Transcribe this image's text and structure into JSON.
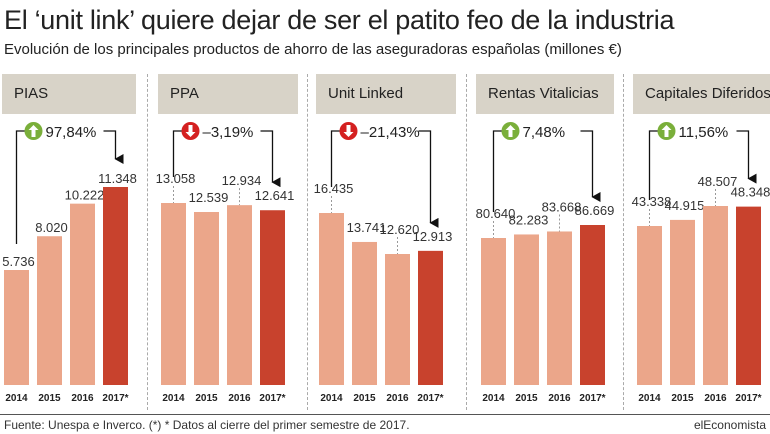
{
  "header": {
    "title": "El ‘unit link’ quiere dejar de ser el patito feo de la industria",
    "subtitle": "Evolución de los principales productos de ahorro de las aseguradoras españolas (millones €)"
  },
  "footer": {
    "source": "Fuente: Unespa e Inverco. (*) * Datos al cierre del primer semestre de 2017.",
    "brand": "elEconomista"
  },
  "colors": {
    "bar_light": "#eba68a",
    "bar_highlight": "#c8422d",
    "up_badge": "#7aaf3a",
    "down_badge": "#d42020",
    "header_bg": "#d8d3c8"
  },
  "chart_data": [
    {
      "type": "bar",
      "title": "PIAS",
      "categories": [
        "2014",
        "2015",
        "2016",
        "2017*"
      ],
      "values": [
        5736,
        8020,
        10222,
        11348
      ],
      "value_labels": [
        "5.736",
        "8.020",
        "10.222",
        "11.348"
      ],
      "change": "97,84%",
      "direction": "up",
      "highlight_index": 3
    },
    {
      "type": "bar",
      "title": "PPA",
      "categories": [
        "2014",
        "2015",
        "2016",
        "2017*"
      ],
      "values": [
        13058,
        12539,
        12934,
        12641
      ],
      "value_labels": [
        "13.058",
        "12.539",
        "12.934",
        "12.641"
      ],
      "change": "–3,19%",
      "direction": "down",
      "highlight_index": 3
    },
    {
      "type": "bar",
      "title": "Unit Linked",
      "categories": [
        "2014",
        "2015",
        "2016",
        "2017*"
      ],
      "values": [
        16435,
        13741,
        12620,
        12913
      ],
      "value_labels": [
        "16.435",
        "13.741",
        "12.620",
        "12.913"
      ],
      "change": "–21,43%",
      "direction": "down",
      "highlight_index": 3
    },
    {
      "type": "bar",
      "title": "Rentas Vitalicias",
      "categories": [
        "2014",
        "2015",
        "2016",
        "2017*"
      ],
      "values": [
        80640,
        82283,
        83668,
        86669
      ],
      "value_labels": [
        "80.640",
        "82.283",
        "83.668",
        "86.669"
      ],
      "change": "7,48%",
      "direction": "up",
      "highlight_index": 3
    },
    {
      "type": "bar",
      "title": "Capitales Diferidos",
      "categories": [
        "2014",
        "2015",
        "2016",
        "2017*"
      ],
      "values": [
        43338,
        44915,
        48507,
        48348
      ],
      "value_labels": [
        "43.338",
        "44.915",
        "48.507",
        "48.348"
      ],
      "change": "11,56%",
      "direction": "up",
      "highlight_index": 3
    }
  ]
}
